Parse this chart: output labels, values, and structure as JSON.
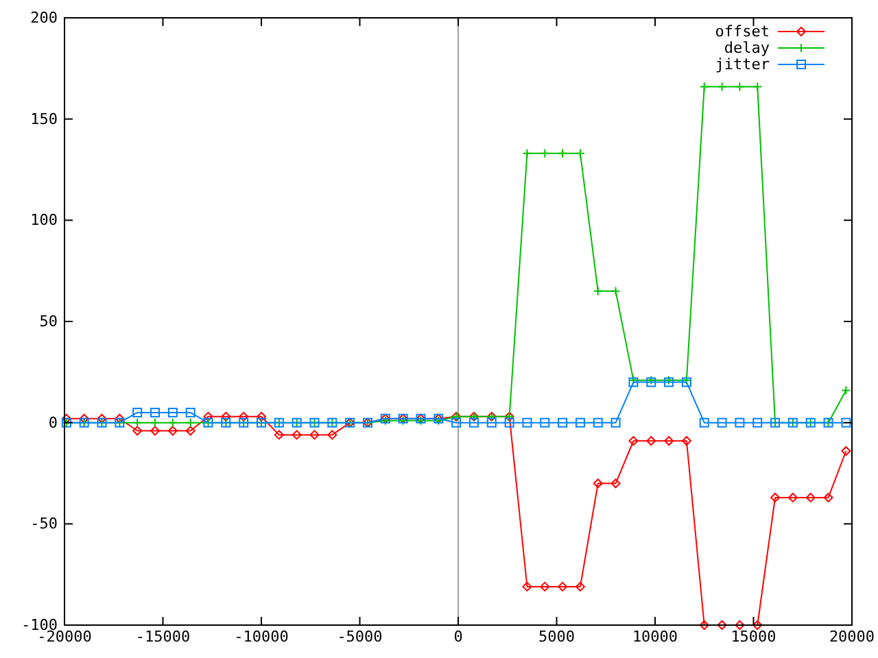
{
  "chart_data": {
    "type": "line",
    "x": [
      -19900,
      -19000,
      -18100,
      -17200,
      -16300,
      -15400,
      -14500,
      -13600,
      -12700,
      -11800,
      -10900,
      -10000,
      -9100,
      -8200,
      -7300,
      -6400,
      -5500,
      -4600,
      -3700,
      -2800,
      -1900,
      -1000,
      -100,
      800,
      1700,
      2600,
      3500,
      4400,
      5300,
      6200,
      7100,
      8000,
      8900,
      9800,
      10700,
      11600,
      12500,
      13400,
      14300,
      15200,
      16100,
      17000,
      17900,
      18800,
      19700
    ],
    "series": [
      {
        "name": "offset",
        "color": "#ff0000",
        "marker": "diamond",
        "values": [
          2,
          2,
          2,
          2,
          -4,
          -4,
          -4,
          -4,
          3,
          3,
          3,
          3,
          -6,
          -6,
          -6,
          -6,
          0,
          0,
          2,
          2,
          2,
          2,
          3,
          3,
          3,
          3,
          -81,
          -81,
          -81,
          -81,
          -30,
          -30,
          -9,
          -9,
          -9,
          -9,
          -100,
          -100,
          -100,
          -100,
          -37,
          -37,
          -37,
          -37,
          -14
        ]
      },
      {
        "name": "delay",
        "color": "#00c000",
        "marker": "cross",
        "values": [
          0,
          0,
          0,
          0,
          0,
          0,
          0,
          0,
          0,
          0,
          0,
          0,
          0,
          0,
          0,
          0,
          0,
          0,
          1,
          1,
          1,
          1,
          3,
          3,
          3,
          3,
          133,
          133,
          133,
          133,
          65,
          65,
          21,
          21,
          21,
          21,
          166,
          166,
          166,
          166,
          0,
          0,
          0,
          0,
          16
        ]
      },
      {
        "name": "jitter",
        "color": "#0080ff",
        "marker": "square",
        "values": [
          0,
          0,
          0,
          0,
          5,
          5,
          5,
          5,
          0,
          0,
          0,
          0,
          0,
          0,
          0,
          0,
          0,
          0,
          2,
          2,
          2,
          2,
          0,
          0,
          0,
          0,
          0,
          0,
          0,
          0,
          0,
          0,
          20,
          20,
          20,
          20,
          0,
          0,
          0,
          0,
          0,
          0,
          0,
          0,
          0
        ]
      }
    ],
    "xlim": [
      -20000,
      20000
    ],
    "xticks": [
      -20000,
      -15000,
      -10000,
      -5000,
      0,
      5000,
      10000,
      15000,
      20000
    ],
    "ylim": [
      -100,
      200
    ],
    "yticks": [
      -100,
      -50,
      0,
      50,
      100,
      150,
      200
    ],
    "ref_lines": [
      {
        "axis": "x",
        "value": 0,
        "color": "#a0a0a0"
      }
    ],
    "legend": "top right",
    "grid": false,
    "line_style": "solid"
  }
}
